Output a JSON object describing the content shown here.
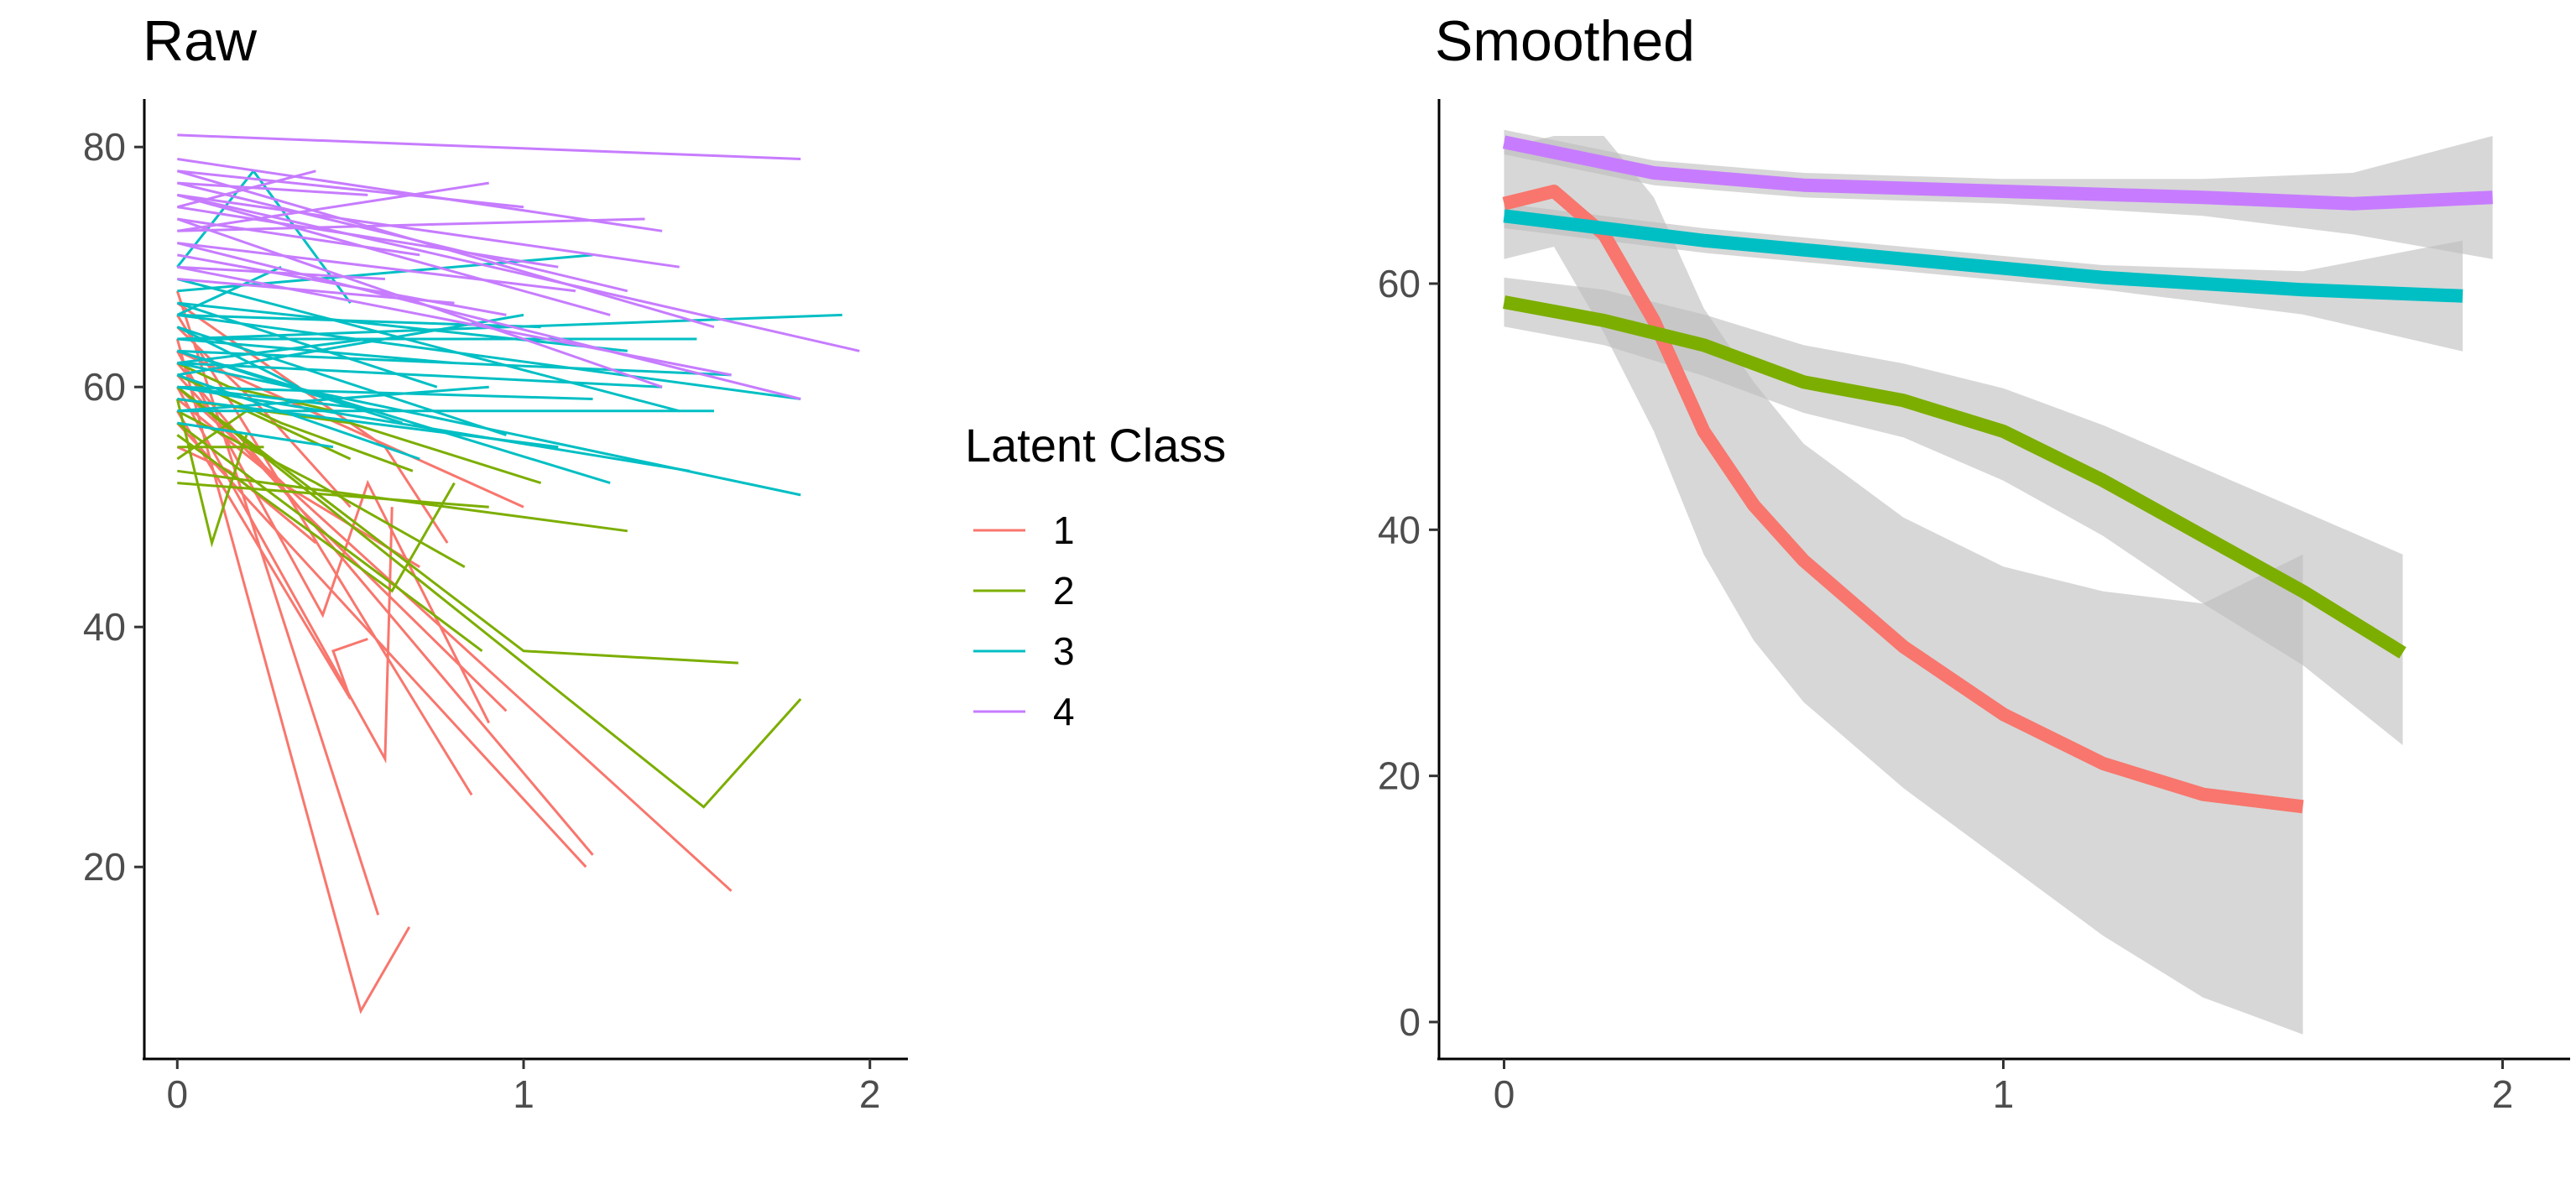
{
  "colors": {
    "1": "#F8766D",
    "2": "#7CAE00",
    "3": "#00BFC4",
    "4": "#C77CFF",
    "ribbon": "#bdbdbd"
  },
  "legend": {
    "title": "Latent Class",
    "placement": "center-right of left panel",
    "items": [
      {
        "label": "1",
        "class": "1"
      },
      {
        "label": "2",
        "class": "2"
      },
      {
        "label": "3",
        "class": "3"
      },
      {
        "label": "4",
        "class": "4"
      }
    ]
  },
  "chart_data": [
    {
      "type": "line",
      "title": "Raw",
      "xlabel": "",
      "ylabel": "",
      "xlim": [
        -0.1,
        2.1
      ],
      "ylim": [
        4,
        84
      ],
      "x_ticks": [
        0,
        1,
        2
      ],
      "x_tick_labels": [
        "0",
        "1",
        "2"
      ],
      "y_ticks": [
        20,
        40,
        60,
        80
      ],
      "y_tick_labels": [
        "20",
        "40",
        "60",
        "80"
      ],
      "grid": false,
      "series": [
        {
          "class": "1",
          "lines": [
            [
              [
                0,
                64
              ],
              [
                0.53,
                8
              ],
              [
                0.67,
                15
              ]
            ],
            [
              [
                0,
                68
              ],
              [
                0.58,
                16
              ]
            ],
            [
              [
                0,
                60
              ],
              [
                0.6,
                29
              ],
              [
                0.62,
                50
              ]
            ],
            [
              [
                0,
                58
              ],
              [
                0.5,
                34
              ],
              [
                0.45,
                38
              ],
              [
                0.55,
                39
              ]
            ],
            [
              [
                0,
                66
              ],
              [
                0.85,
                26
              ]
            ],
            [
              [
                0,
                62
              ],
              [
                1.2,
                21
              ]
            ],
            [
              [
                0,
                57
              ],
              [
                1.18,
                20
              ]
            ],
            [
              [
                0,
                60
              ],
              [
                1.6,
                18
              ]
            ],
            [
              [
                0,
                63
              ],
              [
                0.42,
                41
              ],
              [
                0.55,
                52
              ],
              [
                0.9,
                32
              ]
            ],
            [
              [
                0,
                59
              ],
              [
                0.3,
                52
              ],
              [
                0.7,
                45
              ]
            ],
            [
              [
                0,
                61
              ],
              [
                0.35,
                50
              ],
              [
                0.95,
                33
              ]
            ],
            [
              [
                0,
                65
              ],
              [
                0.25,
                58
              ],
              [
                0.5,
                50
              ]
            ],
            [
              [
                0,
                55
              ],
              [
                0.15,
                53
              ],
              [
                0.4,
                47
              ]
            ],
            [
              [
                0,
                67
              ],
              [
                0.6,
                55
              ],
              [
                0.78,
                47
              ]
            ],
            [
              [
                0,
                63
              ],
              [
                1.0,
                50
              ]
            ]
          ]
        },
        {
          "class": "2",
          "lines": [
            [
              [
                0,
                52
              ],
              [
                0.9,
                50
              ]
            ],
            [
              [
                0,
                53
              ],
              [
                1.3,
                48
              ]
            ],
            [
              [
                0,
                59
              ],
              [
                0.1,
                47
              ],
              [
                0.2,
                56
              ]
            ],
            [
              [
                0,
                60
              ],
              [
                1.0,
                38
              ],
              [
                1.62,
                37
              ]
            ],
            [
              [
                0,
                57
              ],
              [
                0.88,
                38
              ]
            ],
            [
              [
                0,
                60
              ],
              [
                1.52,
                25
              ],
              [
                1.8,
                34
              ]
            ],
            [
              [
                0,
                56
              ],
              [
                0.62,
                43
              ],
              [
                0.8,
                52
              ]
            ],
            [
              [
                0,
                58
              ],
              [
                0.4,
                52
              ],
              [
                0.83,
                45
              ]
            ],
            [
              [
                0,
                54
              ],
              [
                0.2,
                58
              ],
              [
                0.5,
                54
              ]
            ],
            [
              [
                0,
                61
              ],
              [
                0.3,
                57
              ],
              [
                0.68,
                53
              ]
            ],
            [
              [
                0,
                62
              ],
              [
                0.15,
                60
              ],
              [
                0.45,
                58
              ]
            ],
            [
              [
                0,
                55
              ],
              [
                0.25,
                55
              ]
            ],
            [
              [
                0,
                59
              ],
              [
                0.5,
                57
              ],
              [
                1.05,
                52
              ]
            ]
          ]
        },
        {
          "class": "3",
          "lines": [
            [
              [
                0,
                62
              ],
              [
                1.8,
                51
              ]
            ],
            [
              [
                0,
                66
              ],
              [
                1.8,
                59
              ]
            ],
            [
              [
                0,
                64
              ],
              [
                1.92,
                66
              ]
            ],
            [
              [
                0,
                60
              ],
              [
                1.48,
                53
              ]
            ],
            [
              [
                0,
                68
              ],
              [
                1.2,
                71
              ]
            ],
            [
              [
                0,
                63
              ],
              [
                1.6,
                61
              ]
            ],
            [
              [
                0,
                58
              ],
              [
                1.55,
                58
              ]
            ],
            [
              [
                0,
                70
              ],
              [
                0.22,
                78
              ],
              [
                0.5,
                67
              ]
            ],
            [
              [
                0,
                65
              ],
              [
                0.95,
                56
              ]
            ],
            [
              [
                0,
                61
              ],
              [
                0.7,
                54
              ]
            ],
            [
              [
                0,
                67
              ],
              [
                1.3,
                63
              ]
            ],
            [
              [
                0,
                59
              ],
              [
                1.1,
                55
              ]
            ],
            [
              [
                0,
                62
              ],
              [
                1.4,
                60
              ]
            ],
            [
              [
                0,
                64
              ],
              [
                0.8,
                62
              ]
            ],
            [
              [
                0,
                66
              ],
              [
                1.05,
                65
              ]
            ],
            [
              [
                0,
                60
              ],
              [
                0.6,
                58
              ]
            ],
            [
              [
                0,
                57
              ],
              [
                0.45,
                55
              ]
            ],
            [
              [
                0,
                63
              ],
              [
                1.25,
                52
              ]
            ],
            [
              [
                0,
                65
              ],
              [
                0.35,
                60
              ]
            ],
            [
              [
                0,
                61
              ],
              [
                1.0,
                66
              ]
            ],
            [
              [
                0,
                69
              ],
              [
                1.45,
                58
              ]
            ],
            [
              [
                0,
                58
              ],
              [
                0.9,
                60
              ]
            ],
            [
              [
                0,
                62
              ],
              [
                0.55,
                64
              ]
            ],
            [
              [
                0,
                67
              ],
              [
                0.75,
                60
              ]
            ],
            [
              [
                0,
                64
              ],
              [
                1.5,
                64
              ]
            ],
            [
              [
                0,
                60
              ],
              [
                1.2,
                59
              ]
            ],
            [
              [
                0,
                66
              ],
              [
                0.3,
                70
              ]
            ],
            [
              [
                0,
                63
              ],
              [
                0.65,
                57
              ]
            ]
          ]
        },
        {
          "class": "4",
          "lines": [
            [
              [
                0,
                81
              ],
              [
                1.8,
                79
              ]
            ],
            [
              [
                0,
                76
              ],
              [
                1.97,
                63
              ]
            ],
            [
              [
                0,
                78
              ],
              [
                1.55,
                65
              ]
            ],
            [
              [
                0,
                74
              ],
              [
                1.4,
                60
              ]
            ],
            [
              [
                0,
                79
              ],
              [
                1.4,
                73
              ]
            ],
            [
              [
                0,
                72
              ],
              [
                1.8,
                59
              ]
            ],
            [
              [
                0,
                77
              ],
              [
                1.3,
                68
              ]
            ],
            [
              [
                0,
                75
              ],
              [
                1.1,
                70
              ]
            ],
            [
              [
                0,
                73
              ],
              [
                0.9,
                77
              ]
            ],
            [
              [
                0,
                70
              ],
              [
                1.6,
                61
              ]
            ],
            [
              [
                0,
                78
              ],
              [
                1.0,
                75
              ]
            ],
            [
              [
                0,
                76
              ],
              [
                1.25,
                66
              ]
            ],
            [
              [
                0,
                74
              ],
              [
                0.7,
                71
              ]
            ],
            [
              [
                0,
                72
              ],
              [
                1.15,
                68
              ]
            ],
            [
              [
                0,
                77
              ],
              [
                0.55,
                76
              ]
            ],
            [
              [
                0,
                71
              ],
              [
                0.95,
                66
              ]
            ],
            [
              [
                0,
                75
              ],
              [
                0.4,
                78
              ]
            ],
            [
              [
                0,
                73
              ],
              [
                1.35,
                74
              ]
            ],
            [
              [
                0,
                69
              ],
              [
                0.8,
                67
              ]
            ],
            [
              [
                0,
                76
              ],
              [
                1.45,
                70
              ]
            ],
            [
              [
                0,
                70
              ],
              [
                0.6,
                69
              ]
            ]
          ]
        }
      ]
    },
    {
      "type": "line",
      "title": "Smoothed",
      "xlabel": "",
      "ylabel": "",
      "xlim": [
        -0.1,
        2.1
      ],
      "ylim": [
        -3,
        75
      ],
      "x_ticks": [
        0,
        1,
        2
      ],
      "x_tick_labels": [
        "0",
        "1",
        "2"
      ],
      "y_ticks": [
        0,
        20,
        40,
        60
      ],
      "y_tick_labels": [
        "0",
        "20",
        "40",
        "60"
      ],
      "grid": false,
      "series": [
        {
          "class": "1",
          "x": [
            0,
            0.1,
            0.2,
            0.3,
            0.4,
            0.5,
            0.6,
            0.8,
            1.0,
            1.2,
            1.4,
            1.6
          ],
          "y": [
            66.5,
            67.5,
            64,
            57,
            48,
            42,
            37.5,
            30.5,
            25,
            21,
            18.5,
            17.5
          ],
          "lower": [
            62,
            63,
            56,
            48,
            38,
            31,
            26,
            19,
            13,
            7,
            2,
            -1
          ],
          "upper": [
            71,
            72,
            72,
            67,
            58,
            52,
            47,
            41,
            37,
            35,
            34,
            38
          ]
        },
        {
          "class": "2",
          "x": [
            0,
            0.2,
            0.4,
            0.6,
            0.8,
            1.0,
            1.2,
            1.4,
            1.6,
            1.8
          ],
          "y": [
            58.5,
            57,
            55,
            52,
            50.5,
            48,
            44,
            39.5,
            35,
            30
          ],
          "lower": [
            56.5,
            55,
            52.5,
            49.5,
            47.5,
            44,
            39.5,
            34,
            29,
            22.5
          ],
          "upper": [
            60.5,
            59.5,
            57.5,
            55,
            53.5,
            51.5,
            48.5,
            45,
            41.5,
            38
          ]
        },
        {
          "class": "3",
          "x": [
            0,
            0.4,
            0.8,
            1.2,
            1.6,
            1.92
          ],
          "y": [
            65.5,
            63.5,
            62,
            60.5,
            59.5,
            59
          ],
          "lower": [
            64.5,
            62.5,
            61,
            59.5,
            57.5,
            54.5
          ],
          "upper": [
            66.5,
            64.5,
            63,
            61.5,
            61,
            63.5
          ]
        },
        {
          "class": "4",
          "x": [
            0,
            0.3,
            0.6,
            1.0,
            1.4,
            1.7,
            1.98
          ],
          "y": [
            71.5,
            69,
            68,
            67.5,
            67,
            66.5,
            67
          ],
          "lower": [
            70.5,
            68,
            67,
            66.5,
            65.5,
            64,
            62
          ],
          "upper": [
            72.5,
            70,
            69,
            68.5,
            68.5,
            69,
            72
          ]
        }
      ]
    }
  ]
}
